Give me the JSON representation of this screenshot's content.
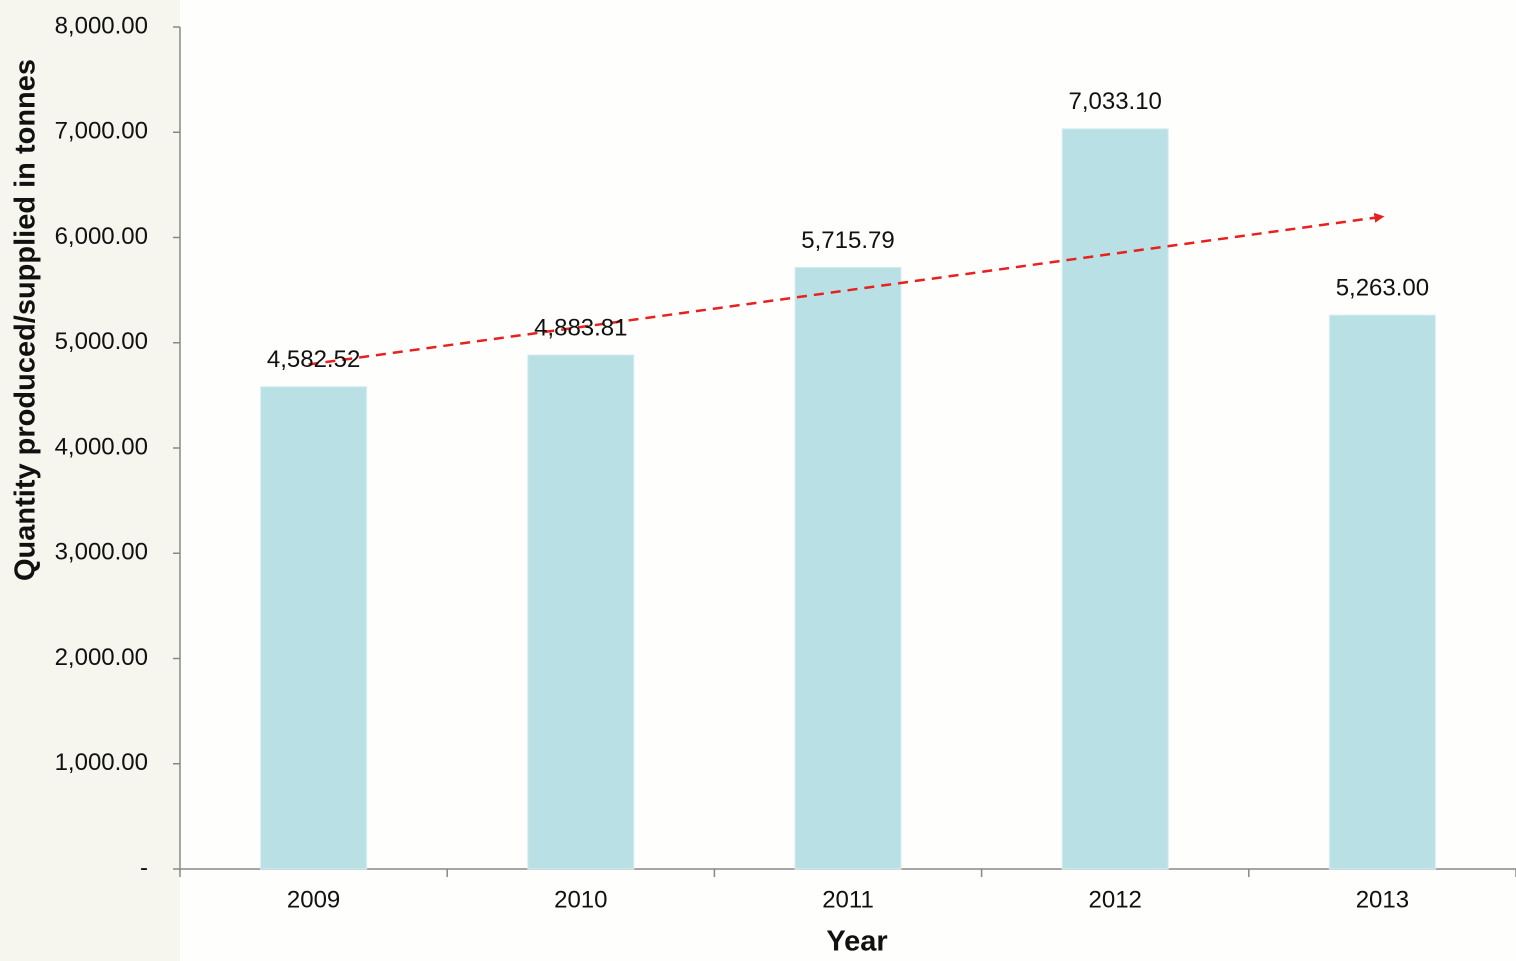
{
  "chart_data": {
    "type": "bar",
    "x_label": "Year",
    "y_label": "Quantity produced/supplied in tonnes",
    "categories": [
      "2009",
      "2010",
      "2011",
      "2012",
      "2013"
    ],
    "values": [
      4582.52,
      4883.81,
      5715.79,
      7033.1,
      5263.0
    ],
    "value_labels": [
      "4,582.52",
      "4,883.81",
      "5,715.79",
      "7,033.10",
      "5,263.00"
    ],
    "color": "#b9e0e4",
    "trendline_color": "#e8201e",
    "ylim": [
      0,
      8000
    ],
    "yticks": [
      {
        "value": 0,
        "label": "-"
      },
      {
        "value": 1000,
        "label": "1,000.00"
      },
      {
        "value": 2000,
        "label": "2,000.00"
      },
      {
        "value": 3000,
        "label": "3,000.00"
      },
      {
        "value": 4000,
        "label": "4,000.00"
      },
      {
        "value": 5000,
        "label": "5,000.00"
      },
      {
        "value": 6000,
        "label": "6,000.00"
      },
      {
        "value": 7000,
        "label": "7,000.00"
      },
      {
        "value": 8000,
        "label": "8,000.00"
      }
    ]
  }
}
